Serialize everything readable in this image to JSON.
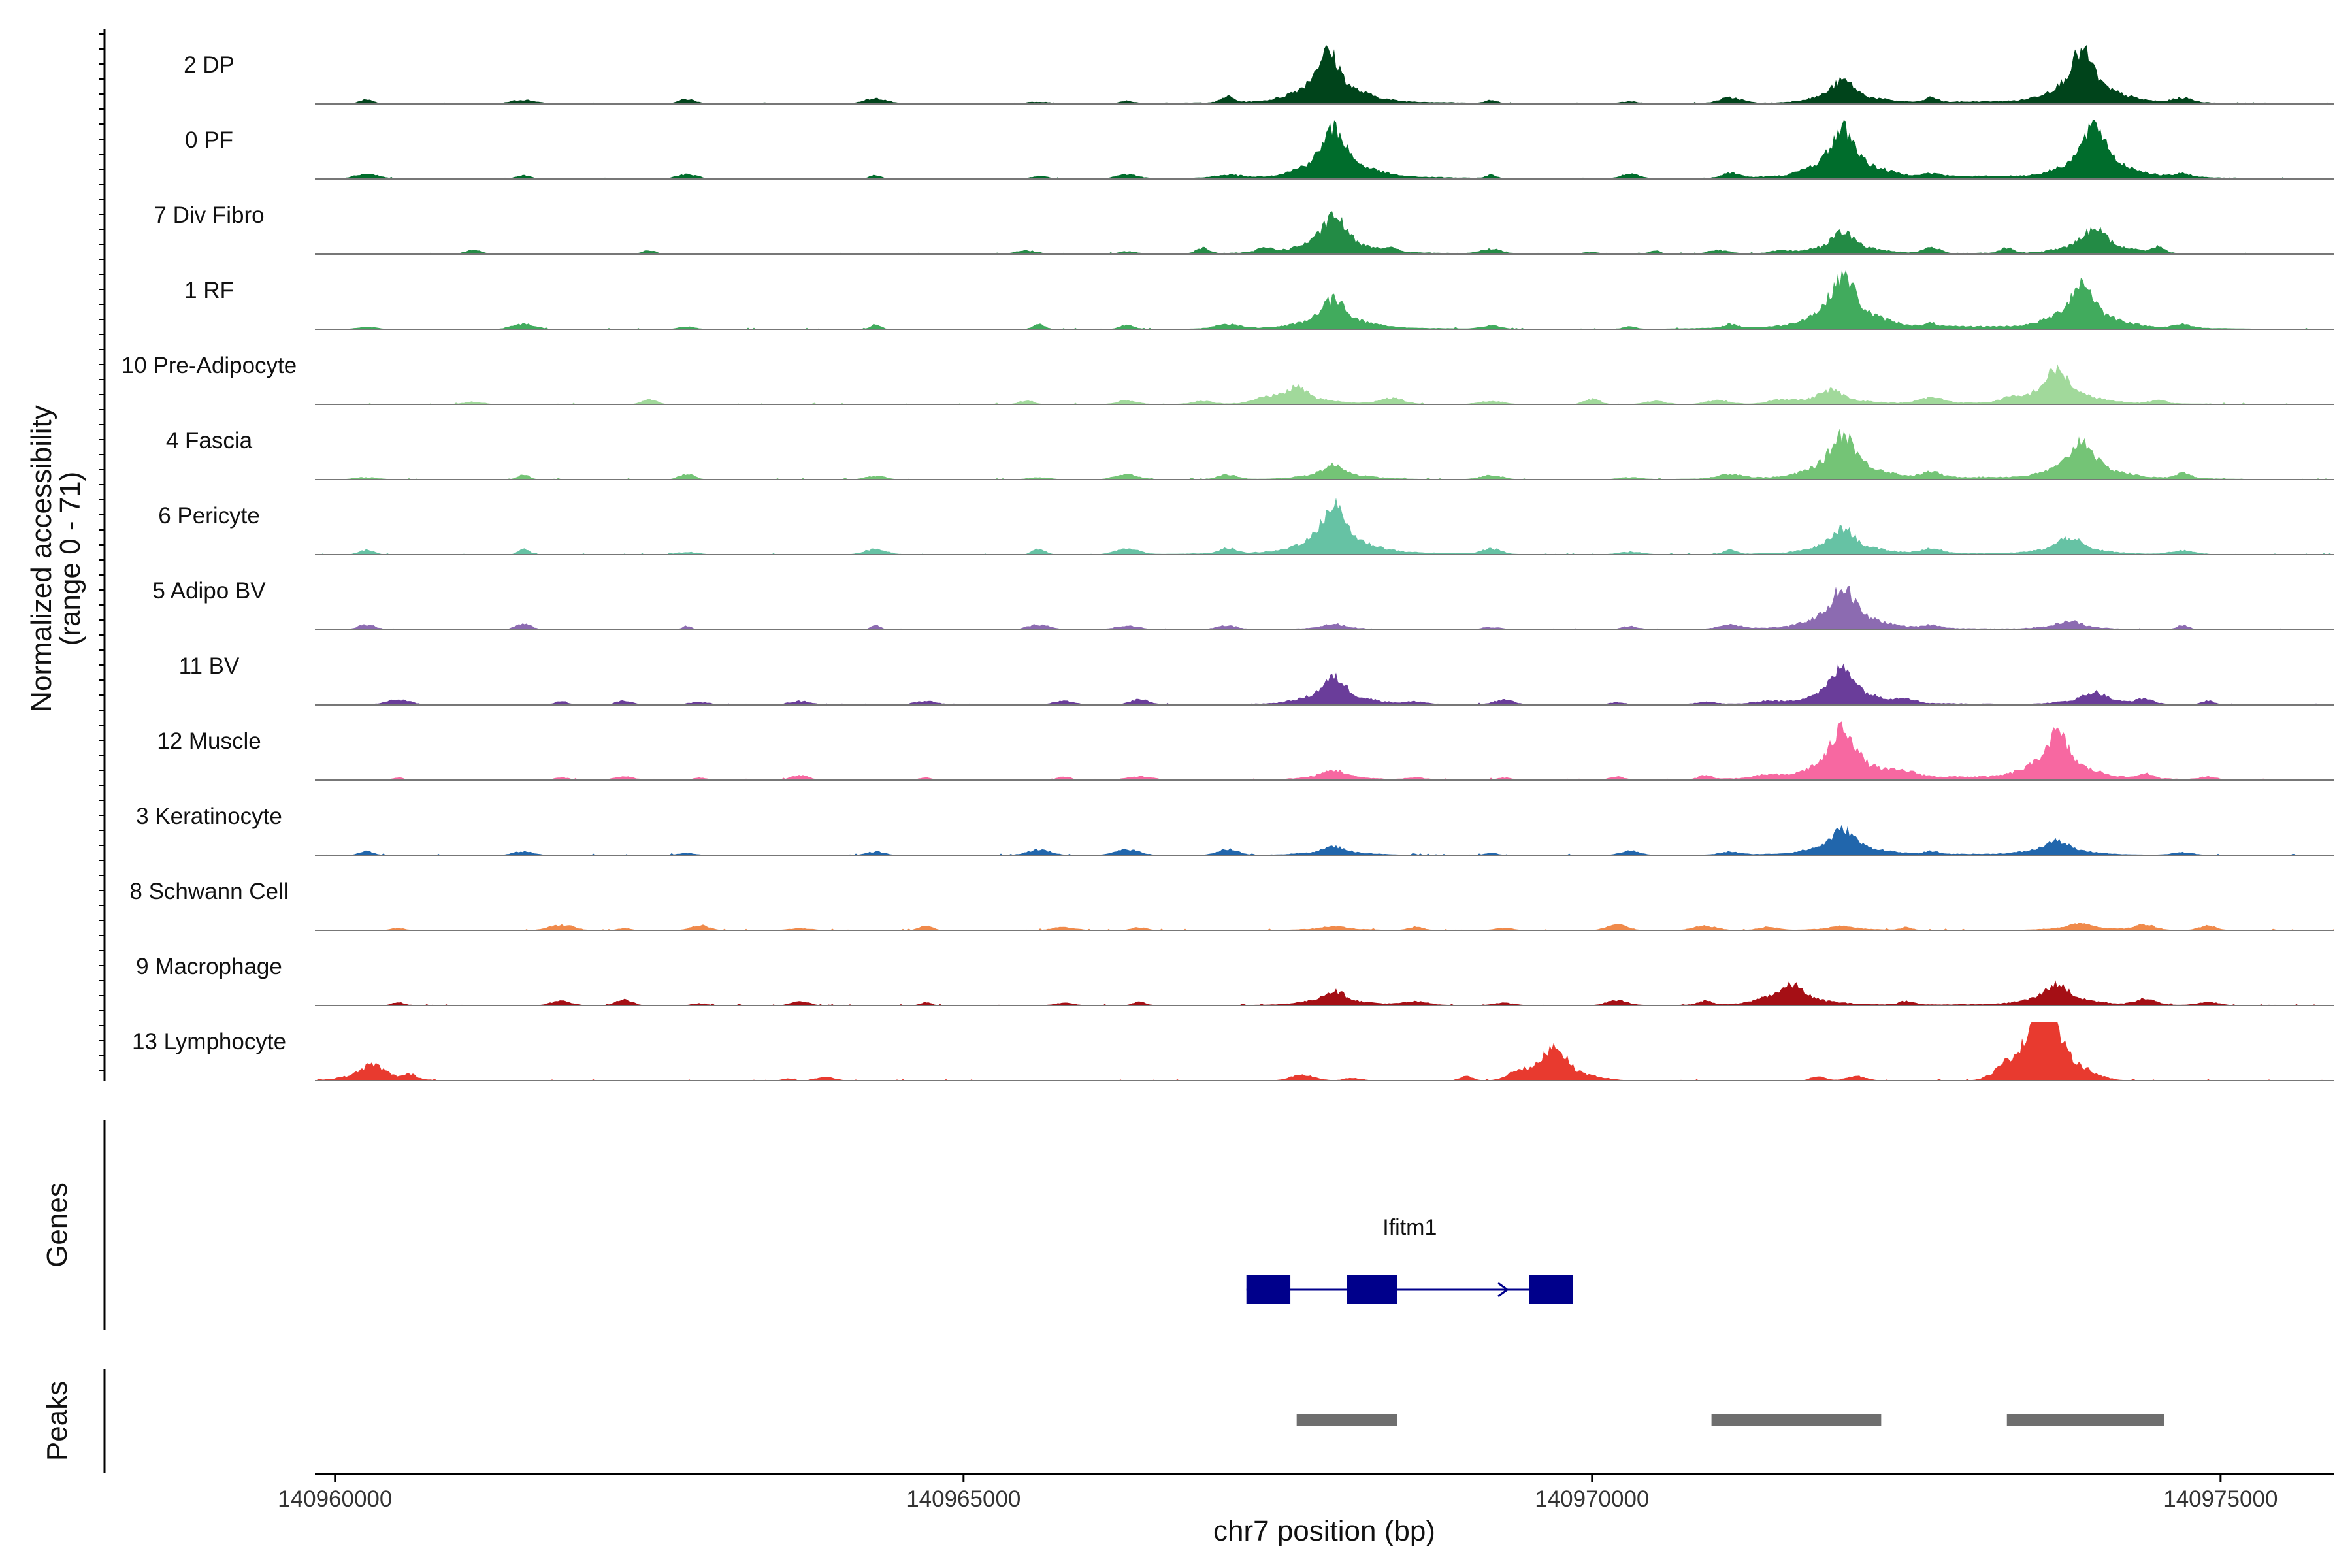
{
  "chart_data": {
    "type": "area",
    "y_axis_title": "Normalized accessibility",
    "y_axis_subtitle": "(range 0 - 71)",
    "x_axis_title": "chr7 position (bp)",
    "x_range": [
      140959840,
      140975900
    ],
    "y_range": [
      0,
      71
    ],
    "x_ticks": [
      {
        "value": 140960000,
        "label": "140960000"
      },
      {
        "value": 140965000,
        "label": "140965000"
      },
      {
        "value": 140970000,
        "label": "140970000"
      },
      {
        "value": 140975000,
        "label": "140975000"
      }
    ],
    "tracks": [
      {
        "name": "2 DP",
        "color": "#00441b",
        "profile": "core",
        "peaks": [
          [
            140967900,
            36
          ],
          [
            140972000,
            16
          ],
          [
            140973900,
            36
          ]
        ]
      },
      {
        "name": "0 PF",
        "color": "#006d2c",
        "profile": "core",
        "peaks": [
          [
            140967950,
            35
          ],
          [
            140972000,
            35
          ],
          [
            140974000,
            37
          ]
        ]
      },
      {
        "name": "7 Div Fibro",
        "color": "#238b45",
        "profile": "wide",
        "peaks": [
          [
            140967950,
            26
          ],
          [
            140972000,
            15
          ],
          [
            140974000,
            18
          ]
        ]
      },
      {
        "name": "1 RF",
        "color": "#41ab5d",
        "profile": "core",
        "peaks": [
          [
            140967950,
            21
          ],
          [
            140972000,
            38
          ],
          [
            140973900,
            32
          ]
        ]
      },
      {
        "name": "10 Pre-Adipocyte",
        "color": "#a1d99b",
        "profile": "wide",
        "peaks": [
          [
            140967650,
            12
          ],
          [
            140971900,
            10
          ],
          [
            140973700,
            24
          ]
        ]
      },
      {
        "name": "4 Fascia",
        "color": "#74c476",
        "profile": "core",
        "peaks": [
          [
            140967950,
            10
          ],
          [
            140972000,
            32
          ],
          [
            140973900,
            27
          ]
        ]
      },
      {
        "name": "6 Pericyte",
        "color": "#66c2a4",
        "profile": "core",
        "peaks": [
          [
            140967950,
            34
          ],
          [
            140972000,
            18
          ],
          [
            140973800,
            12
          ]
        ]
      },
      {
        "name": "5 Adipo BV",
        "color": "#8c6bb1",
        "profile": "core",
        "peaks": [
          [
            140967950,
            4
          ],
          [
            140972000,
            29
          ],
          [
            140973800,
            6
          ]
        ]
      },
      {
        "name": "11 BV",
        "color": "#6a3d9a",
        "profile": "sparse",
        "peaks": [
          [
            140967950,
            19
          ],
          [
            140972000,
            26
          ],
          [
            140974000,
            9
          ]
        ]
      },
      {
        "name": "12 Muscle",
        "color": "#f768a1",
        "profile": "sparse",
        "peaks": [
          [
            140967950,
            7
          ],
          [
            140972000,
            36
          ],
          [
            140973700,
            32
          ]
        ]
      },
      {
        "name": "3 Keratinocyte",
        "color": "#2166ac",
        "profile": "core",
        "peaks": [
          [
            140967950,
            6
          ],
          [
            140972000,
            18
          ],
          [
            140973700,
            10
          ]
        ]
      },
      {
        "name": "8 Schwann Cell",
        "color": "#f08a4b",
        "profile": "sparse",
        "peaks": [
          [
            140967950,
            3
          ],
          [
            140972000,
            3
          ],
          [
            140973900,
            5
          ]
        ]
      },
      {
        "name": "9 Macrophage",
        "color": "#a50f15",
        "profile": "sparse",
        "peaks": [
          [
            140967950,
            10
          ],
          [
            140971600,
            14
          ],
          [
            140973700,
            15
          ]
        ]
      },
      {
        "name": "13 Lymphocyte",
        "color": "#e83a2f",
        "profile": "lymph",
        "peaks": [
          [
            140960300,
            12
          ],
          [
            140969700,
            26
          ],
          [
            140973600,
            71
          ]
        ]
      }
    ],
    "genes_track": {
      "title": "Genes",
      "gene_name": "Ifitm1",
      "color": "#00008b",
      "exons": [
        [
          140967250,
          140967600
        ],
        [
          140968050,
          140968450
        ],
        [
          140969500,
          140969850
        ]
      ],
      "span": [
        140967250,
        140969850
      ]
    },
    "peaks_track": {
      "title": "Peaks",
      "color": "#6e6e6e",
      "regions": [
        [
          140967650,
          140968450
        ],
        [
          140970950,
          140972300
        ],
        [
          140973300,
          140974550
        ]
      ]
    }
  }
}
